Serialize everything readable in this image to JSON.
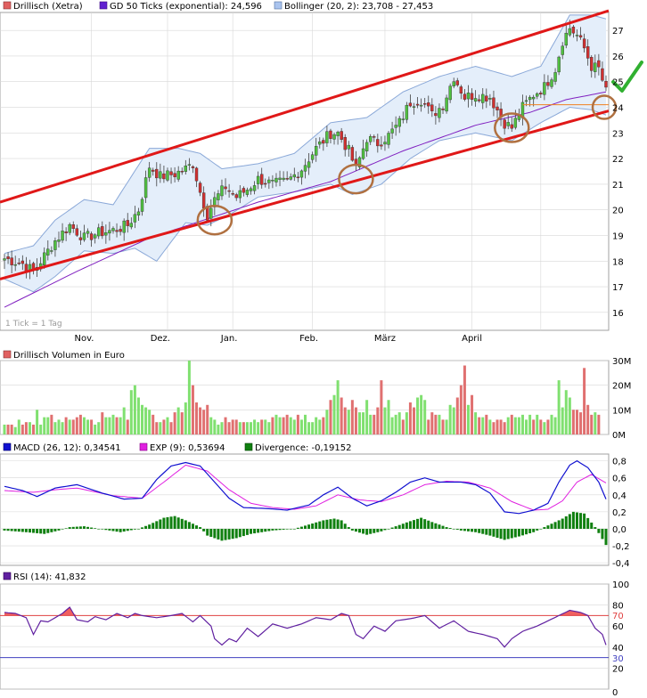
{
  "colors": {
    "up": "#50c040",
    "down": "#d03030",
    "vol_up": "#80e070",
    "vol_down": "#e07070",
    "ema": "#8020c0",
    "band": "#8aa8d8",
    "band_fill": "#e4eefa",
    "trend": "#e01818",
    "circle": "#b07040",
    "support": "#f08020",
    "check": "#30b030",
    "macd": "#1010d0",
    "signal": "#e020e0",
    "hist": "#108010",
    "rsi": "#6020a0",
    "rsi_ob": "#e04040",
    "rsi_os": "#4040c0",
    "grid": "#d8d8d8"
  },
  "price_panel": {
    "legend": [
      {
        "icon": "legend-swatch-red",
        "text": "Drillisch (Xetra)"
      },
      {
        "icon": "legend-swatch-purple",
        "text": "GD 50 Ticks (exponential): 24,596"
      },
      {
        "icon": "legend-swatch-blue",
        "text": "Bollinger (20, 2): 23,708 - 27,453"
      }
    ],
    "note": "1 Tick = 1 Tag",
    "y_ticks": [
      "16",
      "17",
      "18",
      "19",
      "20",
      "21",
      "22",
      "23",
      "24",
      "25",
      "26",
      "27"
    ],
    "x_labels": [
      "Nov.",
      "Dez.",
      "Jan.",
      "Feb.",
      "März",
      "April"
    ]
  },
  "volume_panel": {
    "legend": [
      {
        "icon": "legend-swatch-red",
        "text": "Drillisch Volumen in Euro"
      }
    ],
    "y_ticks": [
      "0M",
      "10M",
      "20M",
      "30M"
    ]
  },
  "macd_panel": {
    "legend": [
      {
        "icon": "legend-swatch-blue",
        "text": "MACD (26, 12): 0,34541"
      },
      {
        "icon": "legend-swatch-magenta",
        "text": "EXP (9): 0,53694"
      },
      {
        "icon": "legend-swatch-green",
        "text": "Divergence: -0,19152"
      }
    ],
    "y_ticks": [
      "-0,4",
      "-0,2",
      "0,0",
      "0,2",
      "0,4",
      "0,6",
      "0,8"
    ]
  },
  "rsi_panel": {
    "legend": [
      {
        "icon": "legend-swatch-purple",
        "text": "RSI (14): 41,832"
      }
    ],
    "y_ticks": [
      "0",
      "20",
      "40",
      "60",
      "80",
      "100"
    ],
    "ob_label": "70",
    "os_label": "30"
  },
  "chart_data": [
    {
      "type": "candlestick",
      "title": "Drillisch (Xetra)",
      "ylim": [
        15.3,
        27.7
      ],
      "x_categories": [
        "Nov.",
        "Dez.",
        "Jan.",
        "Feb.",
        "März",
        "April"
      ],
      "close_anchors": [
        [
          0,
          18.1
        ],
        [
          5,
          17.9
        ],
        [
          8,
          17.6
        ],
        [
          10,
          18.0
        ],
        [
          14,
          18.8
        ],
        [
          18,
          19.4
        ],
        [
          22,
          18.9
        ],
        [
          26,
          19.1
        ],
        [
          30,
          19.2
        ],
        [
          34,
          19.4
        ],
        [
          37,
          20.0
        ],
        [
          40,
          21.7
        ],
        [
          43,
          21.3
        ],
        [
          47,
          21.4
        ],
        [
          50,
          21.6
        ],
        [
          52,
          21.8
        ],
        [
          54,
          20.7
        ],
        [
          56,
          19.8
        ],
        [
          58,
          20.4
        ],
        [
          61,
          20.9
        ],
        [
          64,
          20.5
        ],
        [
          67,
          20.8
        ],
        [
          70,
          21.2
        ],
        [
          74,
          21.0
        ],
        [
          78,
          21.1
        ],
        [
          82,
          21.6
        ],
        [
          86,
          22.4
        ],
        [
          90,
          23.0
        ],
        [
          92,
          23.0
        ],
        [
          95,
          22.3
        ],
        [
          97,
          21.6
        ],
        [
          100,
          22.8
        ],
        [
          103,
          22.6
        ],
        [
          106,
          22.9
        ],
        [
          109,
          23.4
        ],
        [
          112,
          24.2
        ],
        [
          115,
          24.3
        ],
        [
          118,
          23.7
        ],
        [
          121,
          24.1
        ],
        [
          124,
          25.2
        ],
        [
          127,
          24.4
        ],
        [
          130,
          24.5
        ],
        [
          134,
          24.4
        ],
        [
          138,
          23.4
        ],
        [
          140,
          23.2
        ],
        [
          143,
          24.0
        ],
        [
          146,
          24.5
        ],
        [
          149,
          24.8
        ],
        [
          152,
          25.5
        ],
        [
          154,
          26.6
        ],
        [
          156,
          27.1
        ],
        [
          158,
          26.8
        ],
        [
          160,
          26.3
        ],
        [
          162,
          25.6
        ],
        [
          164,
          25.5
        ],
        [
          166,
          24.6
        ]
      ],
      "ema50_anchors": [
        [
          0,
          16.2
        ],
        [
          20,
          17.6
        ],
        [
          40,
          18.9
        ],
        [
          55,
          19.6
        ],
        [
          70,
          20.3
        ],
        [
          90,
          21.1
        ],
        [
          110,
          22.3
        ],
        [
          130,
          23.3
        ],
        [
          145,
          23.8
        ],
        [
          155,
          24.3
        ],
        [
          166,
          24.6
        ]
      ],
      "bollinger_upper_anchors": [
        [
          0,
          18.3
        ],
        [
          8,
          18.6
        ],
        [
          14,
          19.6
        ],
        [
          22,
          20.4
        ],
        [
          30,
          20.2
        ],
        [
          40,
          22.4
        ],
        [
          48,
          22.4
        ],
        [
          54,
          22.2
        ],
        [
          60,
          21.6
        ],
        [
          70,
          21.8
        ],
        [
          80,
          22.2
        ],
        [
          90,
          23.4
        ],
        [
          100,
          23.6
        ],
        [
          110,
          24.6
        ],
        [
          120,
          25.2
        ],
        [
          130,
          25.6
        ],
        [
          140,
          25.2
        ],
        [
          148,
          25.6
        ],
        [
          156,
          27.6
        ],
        [
          162,
          27.6
        ],
        [
          166,
          27.45
        ]
      ],
      "bollinger_lower_anchors": [
        [
          0,
          17.3
        ],
        [
          8,
          16.8
        ],
        [
          14,
          17.4
        ],
        [
          22,
          18.4
        ],
        [
          30,
          18.3
        ],
        [
          36,
          18.5
        ],
        [
          42,
          18.0
        ],
        [
          50,
          19.5
        ],
        [
          56,
          19.4
        ],
        [
          62,
          19.8
        ],
        [
          70,
          20.5
        ],
        [
          80,
          20.7
        ],
        [
          90,
          21.0
        ],
        [
          96,
          20.6
        ],
        [
          104,
          21.0
        ],
        [
          112,
          22.0
        ],
        [
          120,
          22.7
        ],
        [
          130,
          23.0
        ],
        [
          140,
          22.7
        ],
        [
          148,
          23.4
        ],
        [
          156,
          24.0
        ],
        [
          162,
          23.9
        ],
        [
          166,
          23.7
        ]
      ],
      "trend_upper": [
        [
          0,
          20.3
        ],
        [
          166,
          27.7
        ]
      ],
      "trend_lower": [
        [
          0,
          17.3
        ],
        [
          166,
          23.8
        ]
      ],
      "support_line": {
        "x": [
          143,
          166
        ],
        "y": 24.1
      },
      "touch_points": [
        [
          58,
          19.6
        ],
        [
          97,
          21.2
        ],
        [
          140,
          23.2
        ],
        [
          166,
          24.0
        ]
      ]
    },
    {
      "type": "bar",
      "title": "Drillisch Volumen in Euro",
      "ylim": [
        0,
        30
      ],
      "unit": "M",
      "values": [
        4,
        4,
        4,
        3,
        6,
        4,
        5,
        5,
        4,
        10,
        4,
        7,
        7,
        8,
        5,
        6,
        5,
        7,
        6,
        6,
        7,
        8,
        7,
        6,
        6,
        4,
        5,
        9,
        7,
        7,
        8,
        7,
        7,
        11,
        6,
        18,
        20,
        15,
        12,
        11,
        10,
        8,
        5,
        5,
        6,
        7,
        5,
        9,
        11,
        9,
        13,
        30,
        20,
        13,
        11,
        10,
        12,
        7,
        6,
        4,
        5,
        7,
        5,
        6,
        6,
        5,
        5,
        5,
        5,
        6,
        5,
        6,
        6,
        5,
        7,
        8,
        7,
        7,
        8,
        7,
        6,
        8,
        6,
        8,
        5,
        5,
        7,
        6,
        7,
        10,
        14,
        16,
        22,
        15,
        11,
        10,
        14,
        11,
        9,
        9,
        14,
        8,
        8,
        11,
        22,
        11,
        14,
        7,
        8,
        9,
        6,
        9,
        13,
        11,
        15,
        16,
        14,
        6,
        9,
        8,
        8,
        6,
        6,
        12,
        11,
        15,
        20,
        28,
        12,
        16,
        9,
        7,
        7,
        8,
        6,
        5,
        6,
        6,
        5,
        7,
        8,
        7,
        7,
        8,
        6,
        8,
        6,
        8,
        6,
        5,
        6,
        8,
        7,
        22,
        11,
        18,
        15,
        10,
        10,
        9,
        27,
        12,
        8,
        9,
        8
      ]
    },
    {
      "type": "line",
      "title": "MACD (26, 12)",
      "ylim": [
        -0.43,
        0.88
      ],
      "macd_anchors": [
        [
          0,
          0.5
        ],
        [
          5,
          0.45
        ],
        [
          9,
          0.38
        ],
        [
          14,
          0.48
        ],
        [
          20,
          0.52
        ],
        [
          27,
          0.42
        ],
        [
          33,
          0.35
        ],
        [
          38,
          0.36
        ],
        [
          42,
          0.58
        ],
        [
          46,
          0.74
        ],
        [
          50,
          0.78
        ],
        [
          54,
          0.74
        ],
        [
          58,
          0.55
        ],
        [
          62,
          0.36
        ],
        [
          66,
          0.25
        ],
        [
          72,
          0.24
        ],
        [
          78,
          0.22
        ],
        [
          84,
          0.28
        ],
        [
          88,
          0.4
        ],
        [
          92,
          0.49
        ],
        [
          96,
          0.36
        ],
        [
          100,
          0.27
        ],
        [
          104,
          0.33
        ],
        [
          108,
          0.43
        ],
        [
          112,
          0.55
        ],
        [
          116,
          0.6
        ],
        [
          120,
          0.55
        ],
        [
          126,
          0.55
        ],
        [
          130,
          0.52
        ],
        [
          134,
          0.42
        ],
        [
          138,
          0.2
        ],
        [
          142,
          0.18
        ],
        [
          146,
          0.22
        ],
        [
          150,
          0.3
        ],
        [
          153,
          0.55
        ],
        [
          156,
          0.75
        ],
        [
          158,
          0.8
        ],
        [
          161,
          0.72
        ],
        [
          164,
          0.55
        ],
        [
          166,
          0.35
        ]
      ],
      "signal_anchors": [
        [
          0,
          0.45
        ],
        [
          8,
          0.43
        ],
        [
          14,
          0.46
        ],
        [
          20,
          0.48
        ],
        [
          30,
          0.39
        ],
        [
          38,
          0.36
        ],
        [
          44,
          0.55
        ],
        [
          50,
          0.75
        ],
        [
          56,
          0.68
        ],
        [
          62,
          0.46
        ],
        [
          68,
          0.3
        ],
        [
          74,
          0.25
        ],
        [
          80,
          0.23
        ],
        [
          86,
          0.27
        ],
        [
          92,
          0.4
        ],
        [
          98,
          0.34
        ],
        [
          104,
          0.32
        ],
        [
          110,
          0.4
        ],
        [
          116,
          0.52
        ],
        [
          122,
          0.56
        ],
        [
          128,
          0.55
        ],
        [
          134,
          0.48
        ],
        [
          140,
          0.32
        ],
        [
          146,
          0.22
        ],
        [
          150,
          0.23
        ],
        [
          154,
          0.33
        ],
        [
          158,
          0.55
        ],
        [
          162,
          0.64
        ],
        [
          166,
          0.54
        ]
      ],
      "divergence_anchors": [
        [
          0,
          -0.02
        ],
        [
          6,
          -0.04
        ],
        [
          11,
          -0.06
        ],
        [
          15,
          -0.02
        ],
        [
          18,
          0.02
        ],
        [
          22,
          0.03
        ],
        [
          26,
          0.0
        ],
        [
          32,
          -0.04
        ],
        [
          37,
          0.0
        ],
        [
          40,
          0.05
        ],
        [
          44,
          0.13
        ],
        [
          47,
          0.15
        ],
        [
          50,
          0.1
        ],
        [
          54,
          0.02
        ],
        [
          56,
          -0.08
        ],
        [
          60,
          -0.14
        ],
        [
          64,
          -0.11
        ],
        [
          68,
          -0.06
        ],
        [
          74,
          -0.02
        ],
        [
          80,
          0.0
        ],
        [
          84,
          0.05
        ],
        [
          88,
          0.1
        ],
        [
          91,
          0.12
        ],
        [
          93,
          0.1
        ],
        [
          96,
          -0.02
        ],
        [
          100,
          -0.07
        ],
        [
          104,
          -0.03
        ],
        [
          108,
          0.03
        ],
        [
          112,
          0.09
        ],
        [
          115,
          0.13
        ],
        [
          118,
          0.08
        ],
        [
          122,
          0.02
        ],
        [
          126,
          -0.02
        ],
        [
          130,
          -0.04
        ],
        [
          134,
          -0.08
        ],
        [
          138,
          -0.13
        ],
        [
          142,
          -0.09
        ],
        [
          146,
          -0.04
        ],
        [
          150,
          0.04
        ],
        [
          154,
          0.12
        ],
        [
          157,
          0.2
        ],
        [
          160,
          0.18
        ],
        [
          163,
          0.02
        ],
        [
          166,
          -0.19
        ]
      ]
    },
    {
      "type": "line",
      "title": "RSI (14)",
      "ylim": [
        0,
        100
      ],
      "overbought": 70,
      "oversold": 30,
      "rsi_anchors": [
        [
          0,
          73
        ],
        [
          3,
          72
        ],
        [
          6,
          68
        ],
        [
          8,
          52
        ],
        [
          10,
          65
        ],
        [
          12,
          64
        ],
        [
          16,
          72
        ],
        [
          18,
          78
        ],
        [
          20,
          66
        ],
        [
          23,
          64
        ],
        [
          25,
          69
        ],
        [
          28,
          66
        ],
        [
          31,
          72
        ],
        [
          34,
          68
        ],
        [
          36,
          72
        ],
        [
          38,
          70
        ],
        [
          42,
          68
        ],
        [
          46,
          70
        ],
        [
          49,
          72
        ],
        [
          52,
          64
        ],
        [
          54,
          70
        ],
        [
          57,
          60
        ],
        [
          58,
          48
        ],
        [
          60,
          42
        ],
        [
          62,
          48
        ],
        [
          64,
          45
        ],
        [
          67,
          58
        ],
        [
          70,
          50
        ],
        [
          74,
          62
        ],
        [
          78,
          58
        ],
        [
          82,
          62
        ],
        [
          86,
          68
        ],
        [
          90,
          66
        ],
        [
          93,
          72
        ],
        [
          95,
          70
        ],
        [
          97,
          52
        ],
        [
          99,
          48
        ],
        [
          102,
          60
        ],
        [
          105,
          55
        ],
        [
          108,
          65
        ],
        [
          112,
          67
        ],
        [
          116,
          70
        ],
        [
          120,
          58
        ],
        [
          124,
          65
        ],
        [
          128,
          55
        ],
        [
          132,
          52
        ],
        [
          136,
          48
        ],
        [
          138,
          40
        ],
        [
          140,
          48
        ],
        [
          143,
          55
        ],
        [
          147,
          60
        ],
        [
          150,
          65
        ],
        [
          153,
          70
        ],
        [
          156,
          75
        ],
        [
          159,
          73
        ],
        [
          161,
          70
        ],
        [
          163,
          58
        ],
        [
          165,
          52
        ],
        [
          166,
          42
        ]
      ]
    }
  ]
}
